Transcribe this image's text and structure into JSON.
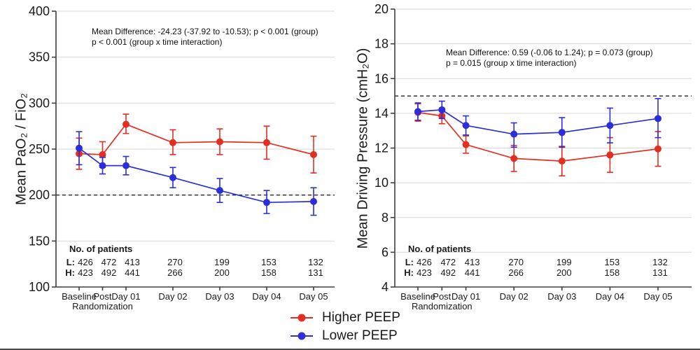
{
  "legend": {
    "position": "bottom-center",
    "items": [
      {
        "label": "Higher PEEP",
        "color": "#e32f22"
      },
      {
        "label": "Lower PEEP",
        "color": "#2b2fd9"
      }
    ]
  },
  "chart_data": [
    {
      "type": "line",
      "title": "",
      "ylabel": "Mean PaO₂ / FiO₂",
      "xlabel": "",
      "ylim": [
        100,
        400
      ],
      "yticks": [
        100,
        150,
        200,
        250,
        300,
        350,
        400
      ],
      "reference_line_y": 200,
      "grid": true,
      "categories": [
        "Baseline",
        "Post Randomization",
        "Day 01",
        "Day 02",
        "Day 03",
        "Day 04",
        "Day 05"
      ],
      "category_label_lines": [
        [
          "Baseline"
        ],
        [
          "Post",
          "Randomization"
        ],
        [
          "Day 01"
        ],
        [
          "Day 02"
        ],
        [
          "Day 03"
        ],
        [
          "Day 04"
        ],
        [
          "Day 05"
        ]
      ],
      "x_positions": [
        0,
        0.5,
        1,
        2,
        3,
        4,
        5
      ],
      "annotation": {
        "line1": "Mean Difference: -24.23 (-37.92 to -10.53); p < 0.001 (group)",
        "line2": "p < 0.001 (group x time interaction)"
      },
      "series": [
        {
          "name": "Higher PEEP",
          "color": "#e32f22",
          "values": [
            245,
            244,
            277,
            257,
            258,
            257,
            244
          ],
          "err_low": [
            228,
            230,
            267,
            244,
            244,
            239,
            224
          ],
          "err_high": [
            262,
            258,
            288,
            271,
            272,
            275,
            264
          ]
        },
        {
          "name": "Lower PEEP",
          "color": "#2b2fd9",
          "values": [
            251,
            232,
            232,
            219,
            205,
            192,
            193
          ],
          "err_low": [
            233,
            223,
            222,
            208,
            192,
            180,
            178
          ],
          "err_high": [
            269,
            241,
            242,
            230,
            218,
            205,
            208
          ]
        }
      ],
      "patients": {
        "title": "No. of patients",
        "rows": [
          {
            "label": "L:",
            "values": [
              "426",
              "472",
              "413",
              "270",
              "199",
              "153",
              "132"
            ]
          },
          {
            "label": "H:",
            "values": [
              "423",
              "492",
              "441",
              "266",
              "200",
              "158",
              "131"
            ]
          }
        ]
      }
    },
    {
      "type": "line",
      "title": "",
      "ylabel": "Mean Driving Pressure (cmH₂O)",
      "xlabel": "",
      "ylim": [
        4,
        20
      ],
      "yticks": [
        4,
        6,
        8,
        10,
        12,
        14,
        16,
        18,
        20
      ],
      "reference_line_y": 15,
      "grid": true,
      "categories": [
        "Baseline",
        "Post Randomization",
        "Day 01",
        "Day 02",
        "Day 03",
        "Day 04",
        "Day 05"
      ],
      "category_label_lines": [
        [
          "Baseline"
        ],
        [
          "Post",
          "Randomization"
        ],
        [
          "Day 01"
        ],
        [
          "Day 02"
        ],
        [
          "Day 03"
        ],
        [
          "Day 04"
        ],
        [
          "Day 05"
        ]
      ],
      "x_positions": [
        0,
        0.5,
        1,
        2,
        3,
        4,
        5
      ],
      "annotation": {
        "line1": "Mean Difference: 0.59 (-0.06 to 1.24); p = 0.073 (group)",
        "line2": "p = 0.015 (group x time interaction)"
      },
      "series": [
        {
          "name": "Higher PEEP",
          "color": "#e32f22",
          "values": [
            14.05,
            13.85,
            12.2,
            11.4,
            11.25,
            11.6,
            11.95
          ],
          "err_low": [
            13.55,
            13.4,
            11.7,
            10.65,
            10.4,
            10.6,
            10.95
          ],
          "err_high": [
            14.55,
            14.3,
            12.7,
            12.15,
            12.1,
            12.6,
            12.95
          ]
        },
        {
          "name": "Lower PEEP",
          "color": "#2b2fd9",
          "values": [
            14.1,
            14.2,
            13.3,
            12.8,
            12.9,
            13.3,
            13.7
          ],
          "err_low": [
            13.6,
            13.7,
            12.75,
            12.05,
            12.05,
            12.3,
            12.6
          ],
          "err_high": [
            14.6,
            14.7,
            13.85,
            13.45,
            13.75,
            14.3,
            14.85
          ]
        }
      ],
      "patients": {
        "title": "No. of patients",
        "rows": [
          {
            "label": "L:",
            "values": [
              "426",
              "472",
              "413",
              "270",
              "199",
              "153",
              "132"
            ]
          },
          {
            "label": "H:",
            "values": [
              "423",
              "492",
              "441",
              "266",
              "200",
              "158",
              "131"
            ]
          }
        ]
      }
    }
  ]
}
